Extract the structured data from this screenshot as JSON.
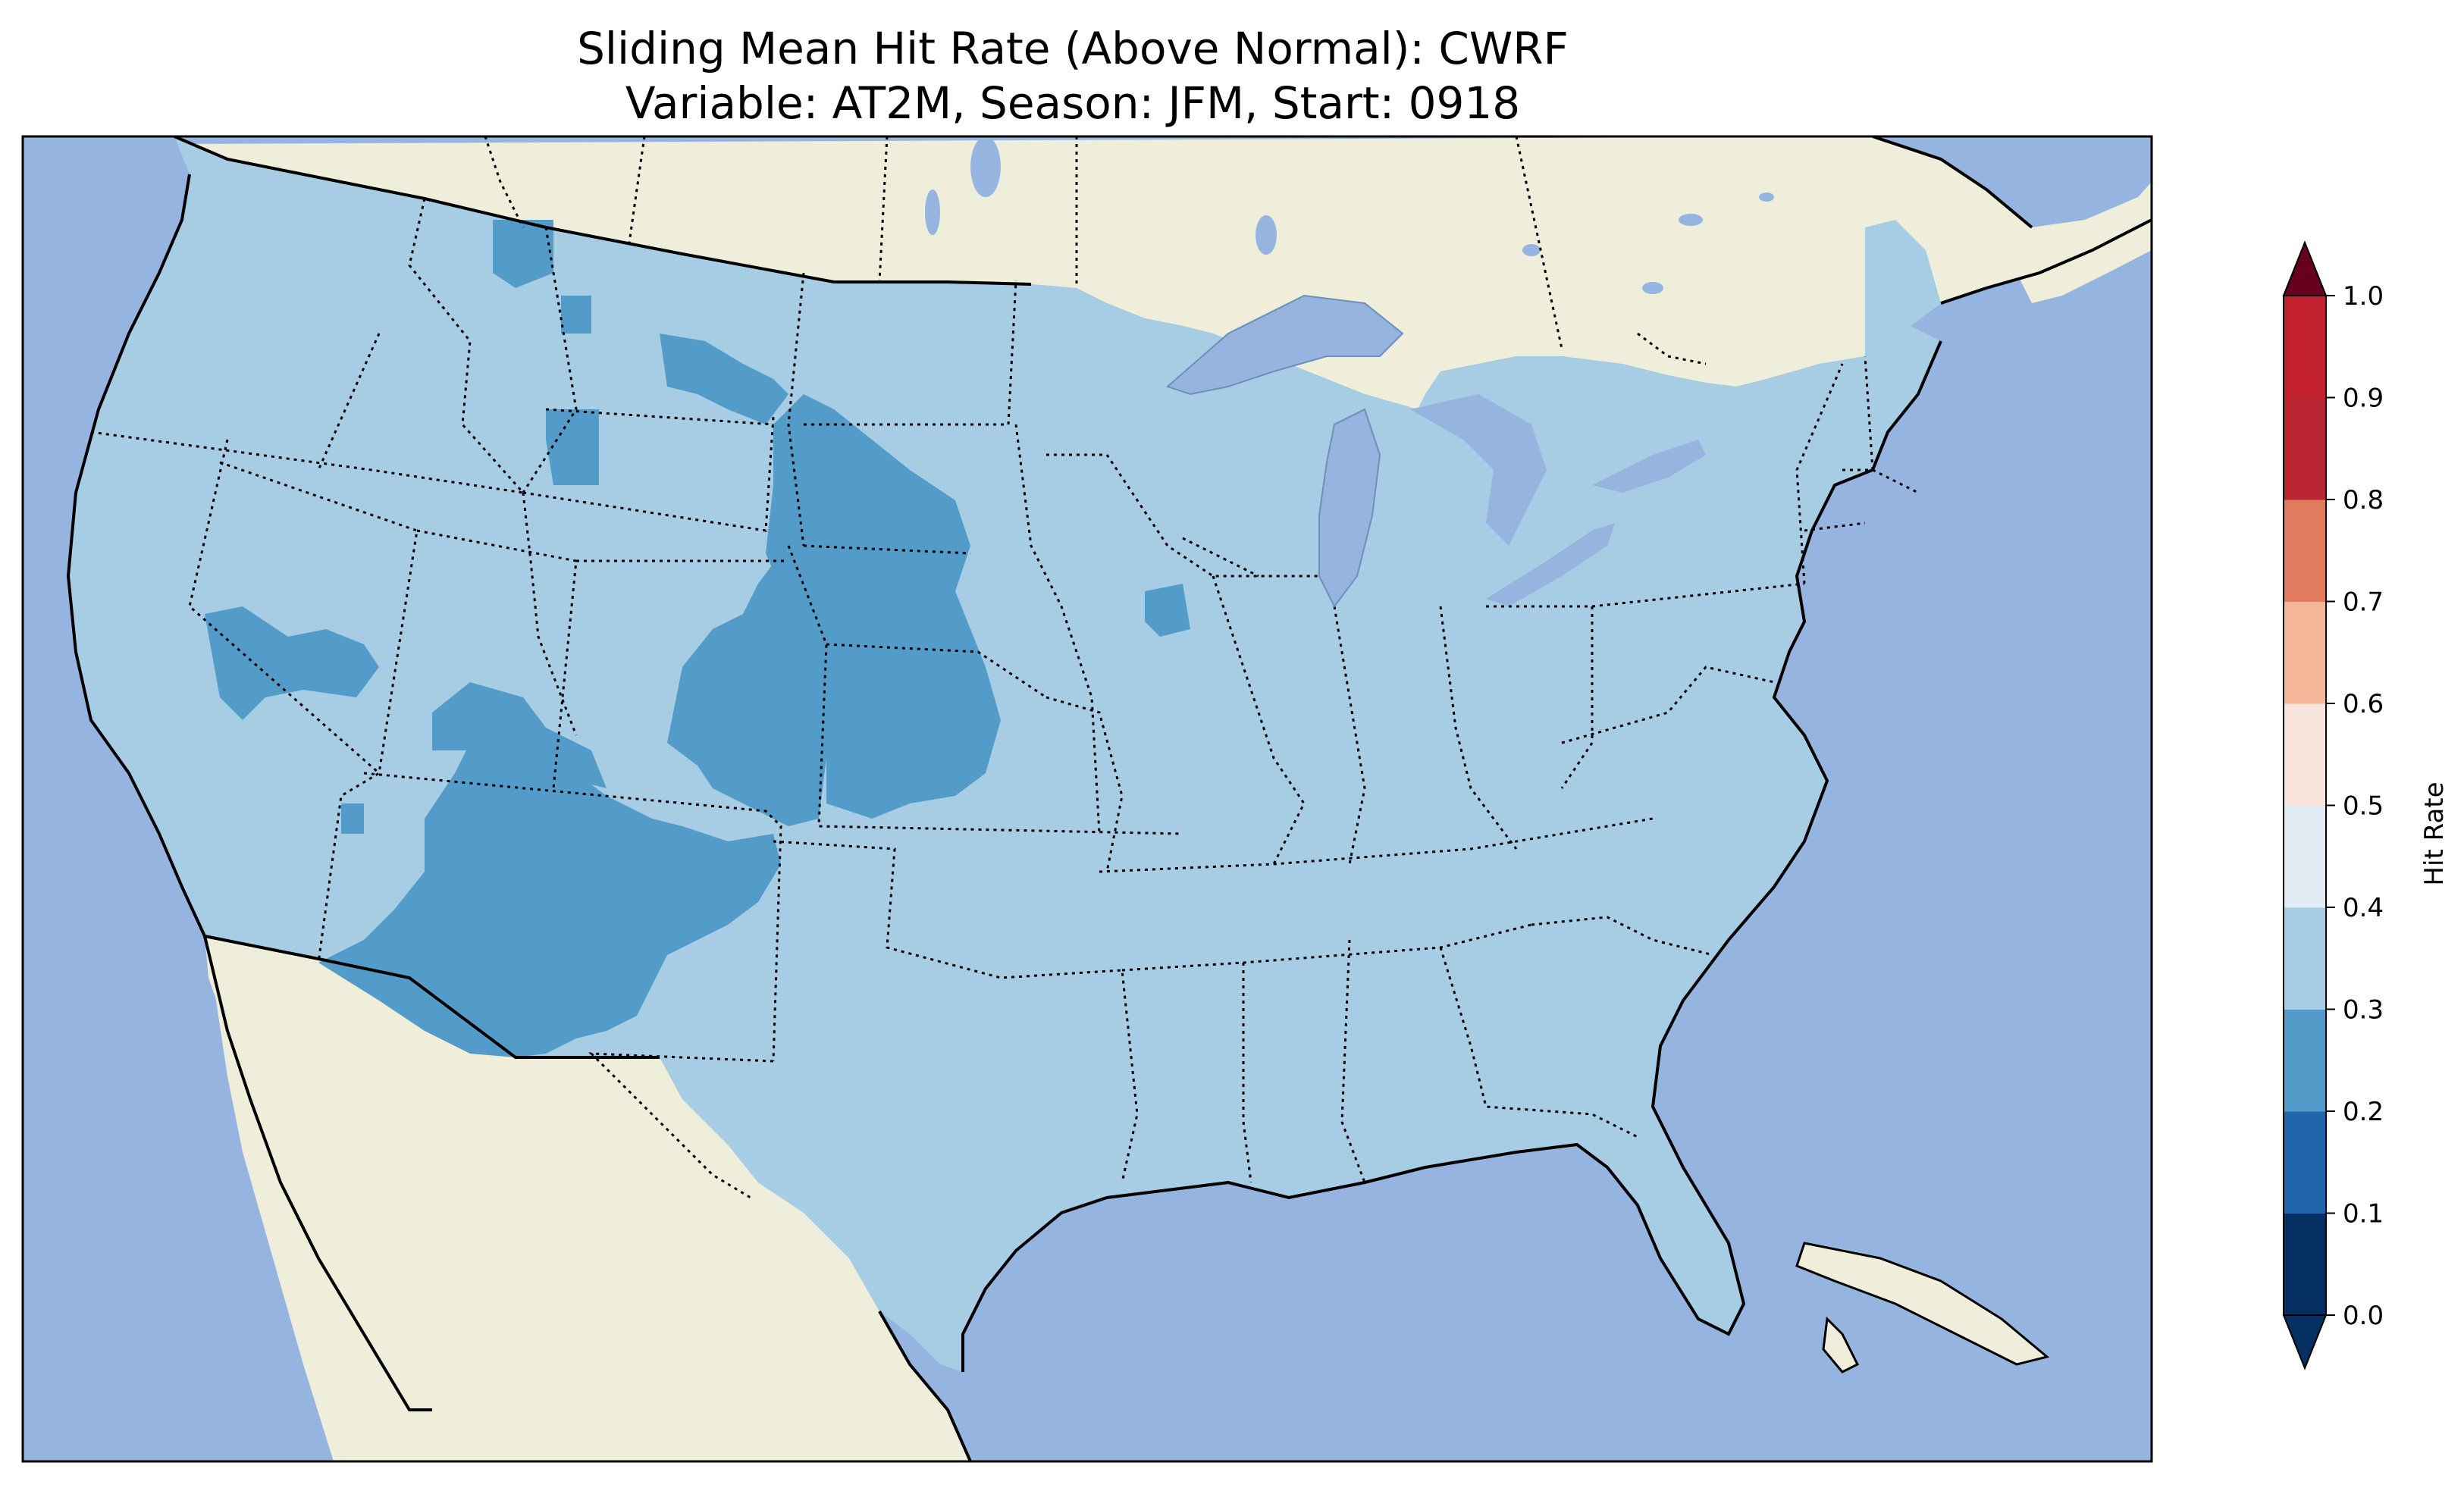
{
  "title": {
    "line1": "Sliding Mean Hit Rate (Above Normal): CWRF",
    "line2": "Variable: AT2M, Season: JFM, Start: 0918"
  },
  "colors": {
    "ocean": "#95b4e0",
    "land": "#efeedb",
    "lakes": "#95b4e0",
    "class_0_3_0_4": "#a6cde3",
    "class_0_2_0_3": "#539bc8"
  },
  "map_data": {
    "projection": "Lambert conformal, CONUS domain",
    "predominant_hit_rate_class": [
      0.3,
      0.4
    ],
    "lower_hit_rate_class": [
      0.2,
      0.3
    ],
    "lower_hit_rate_regions": [
      "Southwest deserts (Arizona/Utah)",
      "Nevada",
      "Colorado",
      "western Kansas",
      "Nebraska panhandle",
      "South Dakota / Wyoming",
      "central Montana",
      "Idaho panhandle",
      "Iowa"
    ]
  },
  "colorbar": {
    "label": "Hit Rate",
    "extend": "both",
    "ticks": [
      "0.0",
      "0.1",
      "0.2",
      "0.3",
      "0.4",
      "0.5",
      "0.6",
      "0.7",
      "0.8",
      "0.9",
      "1.0"
    ],
    "colors": [
      "#053061",
      "#2166ac",
      "#4393c3",
      "#92c5de",
      "#d1e5f0",
      "#f7f7f7",
      "#fddbc7",
      "#f4a582",
      "#d6604d",
      "#b2182b",
      "#67001f"
    ],
    "band_colors": [
      "#053061",
      "#2166ac",
      "#539bc8",
      "#a6cde3",
      "#e2ecf4",
      "#f8e6dc",
      "#f5b699",
      "#e07c5d",
      "#b92530",
      "#c2202f",
      "#67001f"
    ]
  }
}
